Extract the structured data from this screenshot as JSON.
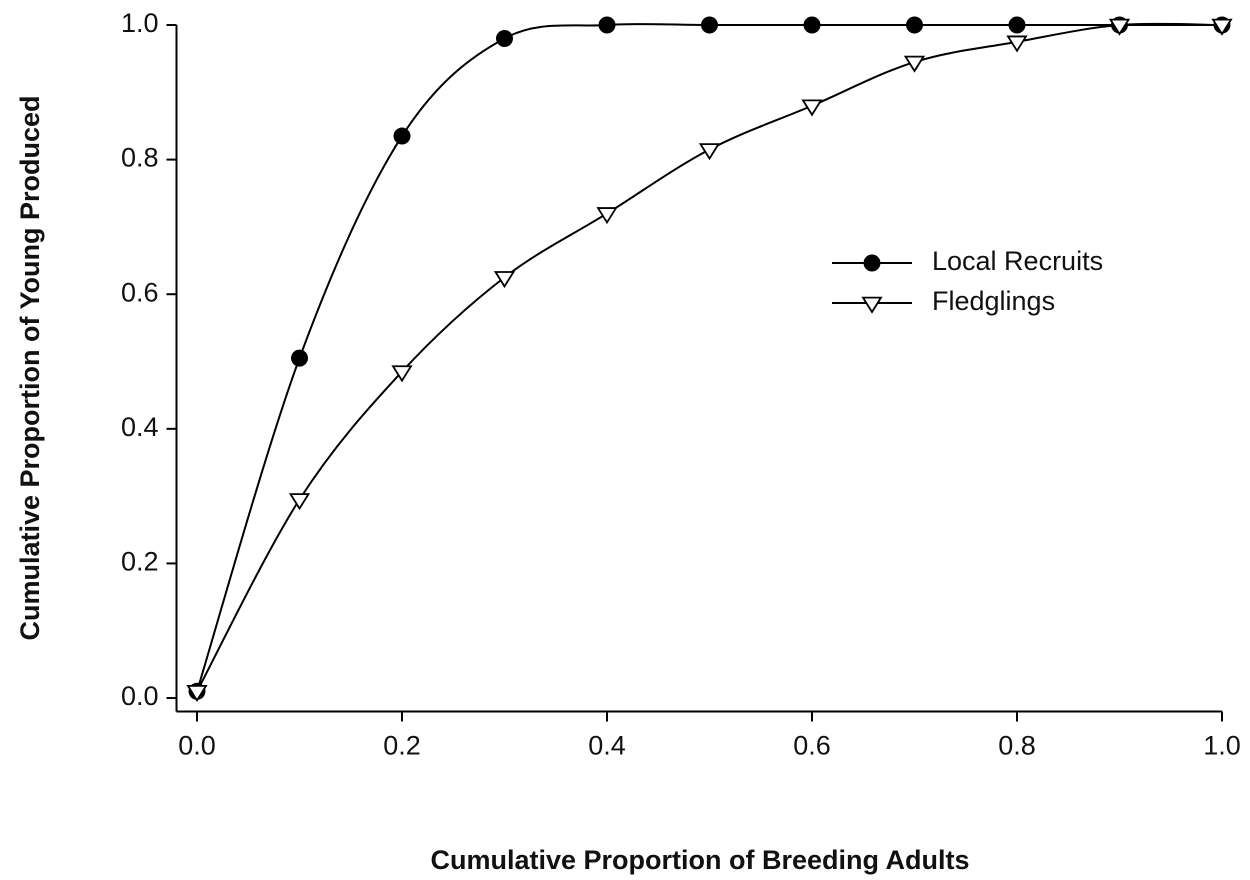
{
  "chart_data": {
    "type": "line",
    "xlabel": "Cumulative Proportion of Breeding Adults",
    "ylabel": "Cumulative Proportion of Young Produced",
    "x": [
      0,
      0.1,
      0.2,
      0.3,
      0.4,
      0.5,
      0.6,
      0.7,
      0.8,
      0.9,
      1
    ],
    "series": [
      {
        "name": "Local Recruits",
        "color": "#000000",
        "marker": "circle",
        "values": [
          0.01,
          0.505,
          0.835,
          0.98,
          1,
          1,
          1,
          1,
          1,
          1,
          1
        ]
      },
      {
        "name": "Fledglings",
        "color": "#000000",
        "marker": "triangle-down",
        "values": [
          0.01,
          0.295,
          0.485,
          0.625,
          0.72,
          0.815,
          0.88,
          0.945,
          0.975,
          1,
          1
        ]
      }
    ],
    "xlim": [
      -0.02,
      1
    ],
    "ylim": [
      -0.02,
      1
    ],
    "xticks": [
      {
        "value": 0,
        "label": "0.0"
      },
      0.2,
      0.4,
      0.6,
      0.8,
      {
        "value": 1,
        "label": "1.0"
      }
    ],
    "yticks": [
      {
        "value": 0,
        "label": "0.0"
      },
      0.2,
      0.4,
      0.6,
      0.8,
      {
        "value": 1,
        "label": "1.0"
      }
    ],
    "grid": false,
    "legend": "right"
  }
}
